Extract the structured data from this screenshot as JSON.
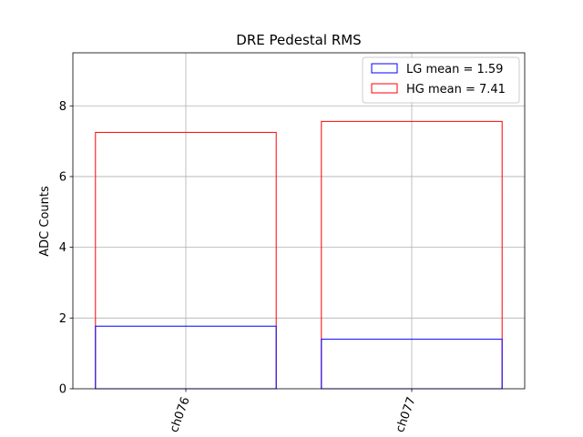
{
  "chart_data": {
    "type": "bar",
    "title": "DRE Pedestal RMS",
    "xlabel": "",
    "ylabel": "ADC Counts",
    "categories": [
      "ch076",
      "ch077"
    ],
    "series": [
      {
        "name": "HG mean = 7.41",
        "values": [
          7.25,
          7.56
        ],
        "color": "#ff0000"
      },
      {
        "name": "LG mean = 1.59",
        "values": [
          1.77,
          1.4
        ],
        "color": "#0000ff"
      }
    ],
    "ylim": [
      0,
      9.5
    ],
    "yticks": [
      0,
      2,
      4,
      6,
      8
    ],
    "grid": true,
    "legend": {
      "position": "top-right",
      "order": [
        "LG mean = 1.59",
        "HG mean = 7.41"
      ]
    },
    "bar_style": "outline"
  }
}
